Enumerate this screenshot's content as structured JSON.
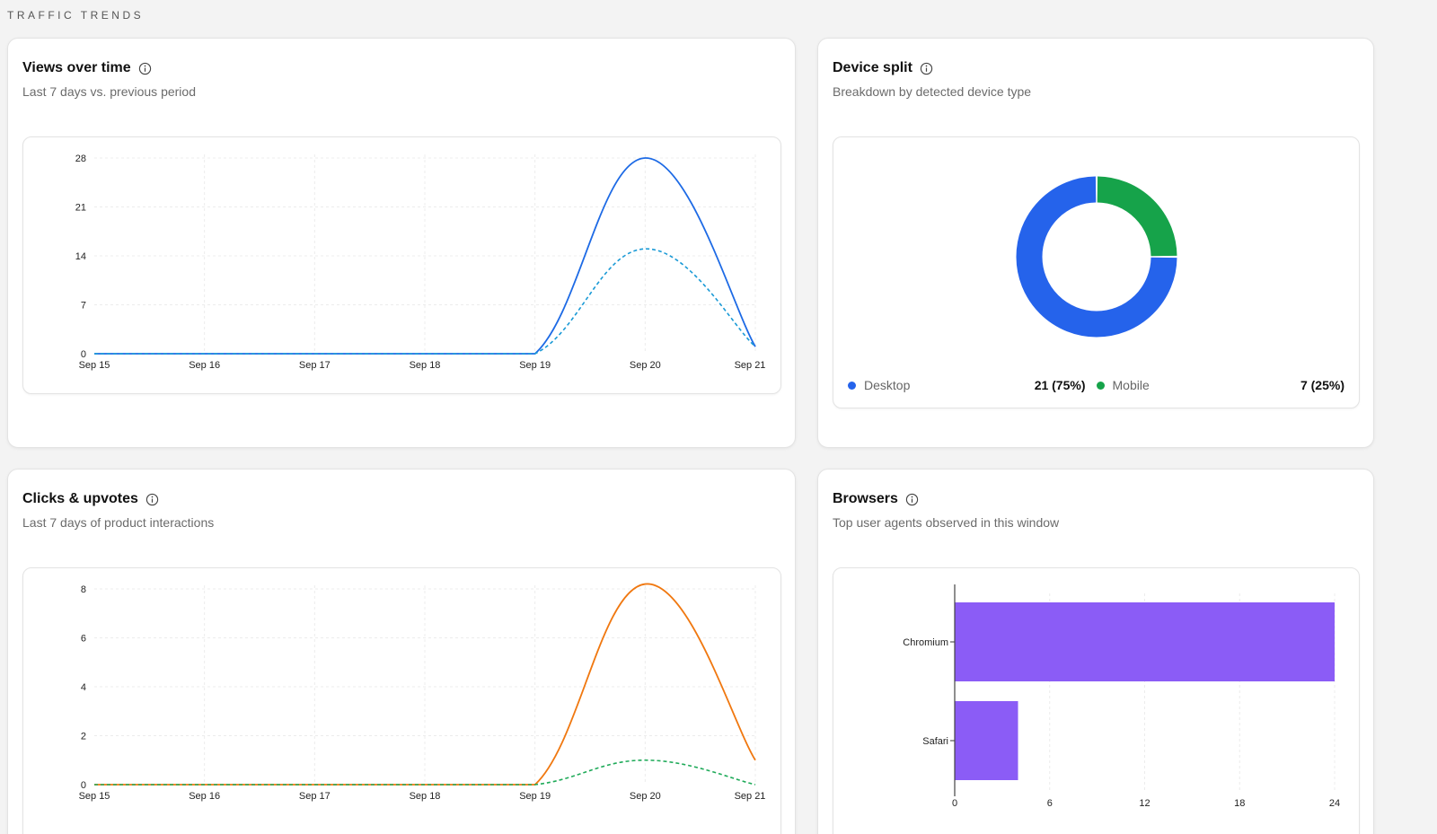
{
  "section_title": "TRAFFIC TRENDS",
  "views_card": {
    "title": "Views over time",
    "subtitle": "Last 7 days vs. previous period"
  },
  "device_card": {
    "title": "Device split",
    "subtitle": "Breakdown by detected device type",
    "legend": [
      {
        "label": "Desktop",
        "value": "21 (75%)",
        "color": "#2563eb"
      },
      {
        "label": "Mobile",
        "value": "7 (25%)",
        "color": "#16a34a"
      }
    ]
  },
  "clicks_card": {
    "title": "Clicks & upvotes",
    "subtitle": "Last 7 days of product interactions"
  },
  "browsers_card": {
    "title": "Browsers",
    "subtitle": "Top user agents observed in this window"
  },
  "chart_data": [
    {
      "type": "line",
      "x": [
        "Sep 15",
        "Sep 16",
        "Sep 17",
        "Sep 18",
        "Sep 19",
        "Sep 20",
        "Sep 21"
      ],
      "yticks": [
        0,
        7,
        14,
        21,
        28
      ],
      "ylim": [
        0,
        28
      ],
      "grid": true,
      "series": [
        {
          "values": [
            0,
            0,
            0,
            0,
            0,
            28,
            1
          ],
          "color": "#1d6ae5",
          "style": "solid"
        },
        {
          "values": [
            0,
            0,
            0,
            0,
            0,
            15,
            1
          ],
          "color": "#1a9ad6",
          "style": "dashed"
        }
      ]
    },
    {
      "type": "pie",
      "donut": true,
      "labels": [
        "Desktop",
        "Mobile"
      ],
      "values": [
        21,
        7
      ],
      "colors": [
        "#2563eb",
        "#16a34a"
      ]
    },
    {
      "type": "line",
      "x": [
        "Sep 15",
        "Sep 16",
        "Sep 17",
        "Sep 18",
        "Sep 19",
        "Sep 20",
        "Sep 21"
      ],
      "yticks": [
        0,
        2,
        4,
        6,
        8
      ],
      "ylim": [
        0,
        8
      ],
      "grid": true,
      "series": [
        {
          "values": [
            0,
            0,
            0,
            0,
            0,
            8.2,
            1
          ],
          "color": "#f07810",
          "style": "solid"
        },
        {
          "values": [
            0,
            0,
            0,
            0,
            0,
            1,
            0
          ],
          "color": "#1faa59",
          "style": "dashed"
        }
      ]
    },
    {
      "type": "bar",
      "orientation": "horizontal",
      "categories": [
        "Chromium",
        "Safari"
      ],
      "values": [
        24,
        4
      ],
      "xticks": [
        0,
        6,
        12,
        18,
        24
      ],
      "xlim": [
        0,
        24
      ],
      "color": "#8b5cf6"
    }
  ]
}
